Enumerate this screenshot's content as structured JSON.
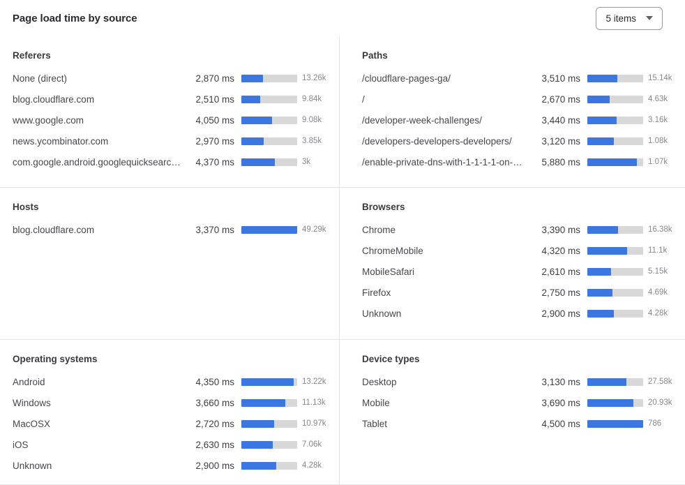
{
  "header": {
    "title": "Page load time by source",
    "items_select": "5 items"
  },
  "colors": {
    "bar_fill": "#3b76e1",
    "bar_track": "#d8d8d8",
    "divider": "#e4e4e6"
  },
  "chart_data": {
    "type": "bar",
    "unit": "ms",
    "legend": "none",
    "layout": "six panels in a 2x3 grid; each row = label, load time (ms), horizontal bar scaled to panel xmax_ms, request count",
    "panels": [
      {
        "title": "Referers",
        "xmax_ms": 7350,
        "rows": [
          {
            "label": "None (direct)",
            "ms": 2870,
            "ms_display": "2,870 ms",
            "count": "13.26k"
          },
          {
            "label": "blog.cloudflare.com",
            "ms": 2510,
            "ms_display": "2,510 ms",
            "count": "9.84k"
          },
          {
            "label": "www.google.com",
            "ms": 4050,
            "ms_display": "4,050 ms",
            "count": "9.08k"
          },
          {
            "label": "news.ycombinator.com",
            "ms": 2970,
            "ms_display": "2,970 ms",
            "count": "3.85k"
          },
          {
            "label": "com.google.android.googlequicksearc…",
            "ms": 4370,
            "ms_display": "4,370 ms",
            "count": "3k"
          }
        ]
      },
      {
        "title": "Paths",
        "xmax_ms": 6600,
        "rows": [
          {
            "label": "/cloudflare-pages-ga/",
            "ms": 3510,
            "ms_display": "3,510 ms",
            "count": "15.14k"
          },
          {
            "label": "/",
            "ms": 2670,
            "ms_display": "2,670 ms",
            "count": "4.63k"
          },
          {
            "label": "/developer-week-challenges/",
            "ms": 3440,
            "ms_display": "3,440 ms",
            "count": "3.16k"
          },
          {
            "label": "/developers-developers-developers/",
            "ms": 3120,
            "ms_display": "3,120 ms",
            "count": "1.08k"
          },
          {
            "label": "/enable-private-dns-with-1-1-1-1-on-…",
            "ms": 5880,
            "ms_display": "5,880 ms",
            "count": "1.07k"
          }
        ]
      },
      {
        "title": "Hosts",
        "xmax_ms": 3370,
        "rows": [
          {
            "label": "blog.cloudflare.com",
            "ms": 3370,
            "ms_display": "3,370 ms",
            "count": "49.29k"
          }
        ]
      },
      {
        "title": "Browsers",
        "xmax_ms": 6100,
        "rows": [
          {
            "label": "Chrome",
            "ms": 3390,
            "ms_display": "3,390 ms",
            "count": "16.38k"
          },
          {
            "label": "ChromeMobile",
            "ms": 4320,
            "ms_display": "4,320 ms",
            "count": "11.1k"
          },
          {
            "label": "MobileSafari",
            "ms": 2610,
            "ms_display": "2,610 ms",
            "count": "5.15k"
          },
          {
            "label": "Firefox",
            "ms": 2750,
            "ms_display": "2,750 ms",
            "count": "4.69k"
          },
          {
            "label": "Unknown",
            "ms": 2900,
            "ms_display": "2,900 ms",
            "count": "4.28k"
          }
        ]
      },
      {
        "title": "Operating systems",
        "xmax_ms": 4640,
        "rows": [
          {
            "label": "Android",
            "ms": 4350,
            "ms_display": "4,350 ms",
            "count": "13.22k"
          },
          {
            "label": "Windows",
            "ms": 3660,
            "ms_display": "3,660 ms",
            "count": "11.13k"
          },
          {
            "label": "MacOSX",
            "ms": 2720,
            "ms_display": "2,720 ms",
            "count": "10.97k"
          },
          {
            "label": "iOS",
            "ms": 2630,
            "ms_display": "2,630 ms",
            "count": "7.06k"
          },
          {
            "label": "Unknown",
            "ms": 2900,
            "ms_display": "2,900 ms",
            "count": "4.28k"
          }
        ]
      },
      {
        "title": "Device types",
        "xmax_ms": 4500,
        "rows": [
          {
            "label": "Desktop",
            "ms": 3130,
            "ms_display": "3,130 ms",
            "count": "27.58k"
          },
          {
            "label": "Mobile",
            "ms": 3690,
            "ms_display": "3,690 ms",
            "count": "20.93k"
          },
          {
            "label": "Tablet",
            "ms": 4500,
            "ms_display": "4,500 ms",
            "count": "786"
          }
        ]
      }
    ]
  }
}
